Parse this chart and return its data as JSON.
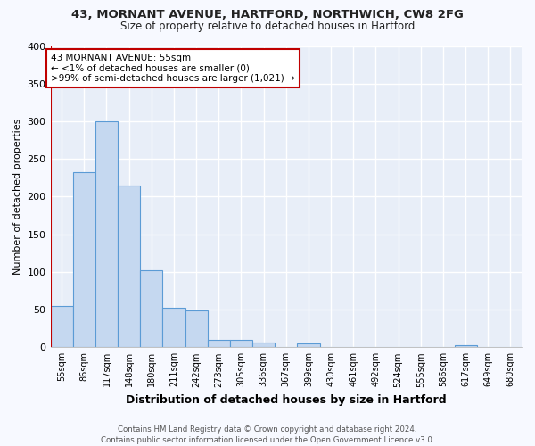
{
  "title_line1": "43, MORNANT AVENUE, HARTFORD, NORTHWICH, CW8 2FG",
  "title_line2": "Size of property relative to detached houses in Hartford",
  "xlabel": "Distribution of detached houses by size in Hartford",
  "ylabel": "Number of detached properties",
  "categories": [
    "55sqm",
    "86sqm",
    "117sqm",
    "148sqm",
    "180sqm",
    "211sqm",
    "242sqm",
    "273sqm",
    "305sqm",
    "336sqm",
    "367sqm",
    "399sqm",
    "430sqm",
    "461sqm",
    "492sqm",
    "524sqm",
    "555sqm",
    "586sqm",
    "617sqm",
    "649sqm",
    "680sqm"
  ],
  "values": [
    55,
    233,
    300,
    215,
    102,
    52,
    49,
    10,
    10,
    6,
    0,
    5,
    0,
    0,
    0,
    0,
    0,
    0,
    3,
    0,
    0
  ],
  "bar_color": "#c5d8f0",
  "bar_edge_color": "#5b9bd5",
  "highlight_color": "#c00000",
  "annotation_text": "43 MORNANT AVENUE: 55sqm\n← <1% of detached houses are smaller (0)\n>99% of semi-detached houses are larger (1,021) →",
  "annotation_box_facecolor": "#ffffff",
  "annotation_box_edgecolor": "#c00000",
  "ylim": [
    0,
    400
  ],
  "yticks": [
    0,
    50,
    100,
    150,
    200,
    250,
    300,
    350,
    400
  ],
  "bg_color": "#f7f9ff",
  "plot_bg_color": "#e8eef8",
  "grid_color": "#ffffff",
  "footer": "Contains HM Land Registry data © Crown copyright and database right 2024.\nContains public sector information licensed under the Open Government Licence v3.0."
}
